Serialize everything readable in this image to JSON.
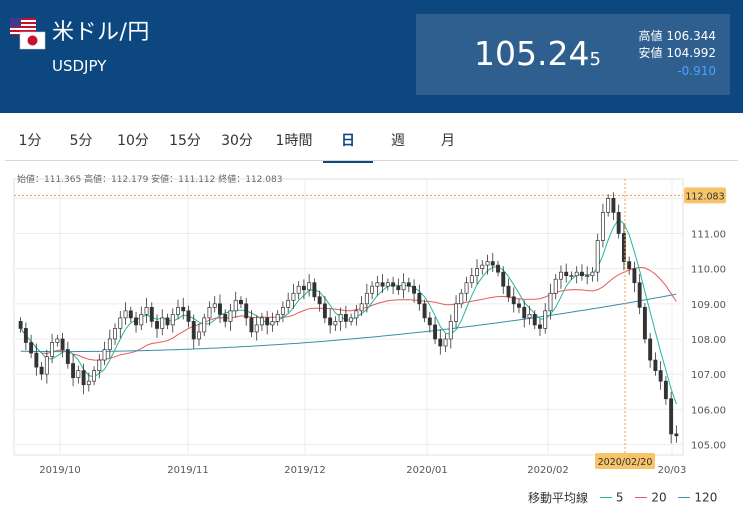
{
  "header": {
    "title": "米ドル/円",
    "code": "USDJPY",
    "price_main": "105.24",
    "price_small": "5",
    "high_label": "高値",
    "high_value": "106.344",
    "low_label": "安値",
    "low_value": "104.992",
    "change": "-0.910",
    "flags": [
      "us-flag-icon",
      "jp-flag-icon"
    ]
  },
  "tabs": [
    {
      "label": "1分"
    },
    {
      "label": "5分"
    },
    {
      "label": "10分"
    },
    {
      "label": "15分"
    },
    {
      "label": "30分"
    },
    {
      "label": "1時間"
    },
    {
      "label": "日",
      "active": true
    },
    {
      "label": "週"
    },
    {
      "label": "月"
    }
  ],
  "ohlc": "始値：111.365 高値：112.179 安値：111.112 終値：112.083",
  "chart_data": {
    "type": "candlestick",
    "y_ticks": [
      "112.00",
      "111.00",
      "110.00",
      "109.00",
      "108.00",
      "107.00",
      "106.00",
      "105.00"
    ],
    "ylim": [
      104.7,
      112.55
    ],
    "x_ticks": [
      "2019/10",
      "2019/11",
      "2019/12",
      "2020/01",
      "2020/02",
      "20/03"
    ],
    "crosshair": {
      "price_label": "112.083",
      "date_label": "2020/02/20",
      "price": 112.083
    },
    "grid": true,
    "candles_close": [
      108.3,
      107.9,
      107.6,
      107.2,
      107.0,
      107.5,
      107.9,
      108.0,
      107.7,
      107.3,
      106.9,
      107.1,
      106.7,
      106.8,
      107.1,
      107.4,
      107.7,
      108.0,
      108.3,
      108.6,
      108.8,
      108.6,
      108.4,
      108.7,
      108.9,
      108.5,
      108.3,
      108.6,
      108.4,
      108.7,
      108.9,
      108.8,
      108.5,
      108.0,
      108.2,
      108.6,
      108.9,
      109.0,
      108.7,
      108.5,
      108.8,
      109.1,
      109.0,
      108.6,
      108.2,
      108.4,
      108.6,
      108.4,
      108.5,
      108.7,
      108.9,
      109.1,
      109.3,
      109.5,
      109.4,
      109.6,
      109.2,
      109.0,
      108.6,
      108.4,
      108.5,
      108.7,
      108.5,
      108.6,
      108.8,
      109.0,
      109.3,
      109.5,
      109.6,
      109.5,
      109.6,
      109.5,
      109.4,
      109.6,
      109.5,
      109.3,
      109.0,
      108.6,
      108.4,
      108.0,
      107.8,
      108.0,
      108.5,
      109.0,
      109.3,
      109.6,
      109.8,
      110.0,
      110.1,
      110.2,
      110.1,
      109.9,
      109.5,
      109.2,
      109.0,
      108.9,
      108.6,
      108.7,
      108.4,
      108.3,
      108.8,
      109.3,
      109.7,
      109.9,
      109.8,
      109.8,
      109.9,
      109.8,
      109.8,
      109.9,
      110.8,
      111.6,
      112.0,
      111.6,
      111.0,
      110.2,
      110.0,
      109.6,
      108.9,
      108.0,
      107.4,
      107.1,
      106.8,
      106.3,
      105.3,
      105.245
    ],
    "series": [
      {
        "name": "5",
        "color": "#26b5a0"
      },
      {
        "name": "20",
        "color": "#e55a5a"
      },
      {
        "name": "120",
        "color": "#3a8fa8"
      }
    ]
  },
  "legend": {
    "label": "移動平均線",
    "items": [
      "5",
      "20",
      "120"
    ]
  }
}
